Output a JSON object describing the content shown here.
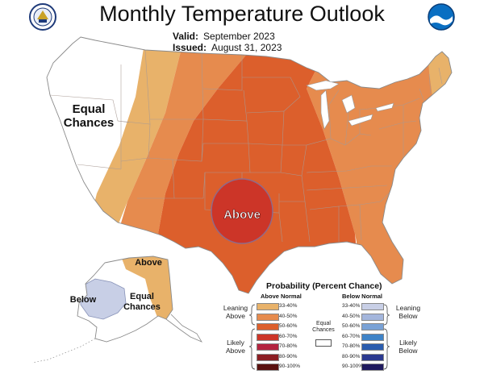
{
  "title": "Monthly Temperature Outlook",
  "valid_label": "Valid:",
  "valid_value": "September 2023",
  "issued_label": "Issued:",
  "issued_value": "August 31, 2023",
  "map_labels": {
    "equal_chances_conus_1": "Equal",
    "equal_chances_conus_2": "Chances",
    "above_center": "Above",
    "alaska_above": "Above",
    "alaska_below": "Below",
    "alaska_equal_1": "Equal",
    "alaska_equal_2": "Chances"
  },
  "legend": {
    "title": "Probability (Percent Chance)",
    "above_header": "Above Normal",
    "below_header": "Below Normal",
    "leaning_above": [
      "Leaning",
      "Above"
    ],
    "likely_above": [
      "Likely",
      "Above"
    ],
    "leaning_below": [
      "Leaning",
      "Below"
    ],
    "likely_below": [
      "Likely",
      "Below"
    ],
    "equal_chances": [
      "Equal",
      "Chances"
    ],
    "above_bins": [
      {
        "label": "33-40%",
        "color": "#e8b26a"
      },
      {
        "label": "40-50%",
        "color": "#e68b4e"
      },
      {
        "label": "50-60%",
        "color": "#dc5f2c"
      },
      {
        "label": "60-70%",
        "color": "#cc3528"
      },
      {
        "label": "70-80%",
        "color": "#b42440"
      },
      {
        "label": "80-90%",
        "color": "#8b1e23"
      },
      {
        "label": "90-100%",
        "color": "#5a1210"
      }
    ],
    "below_bins": [
      {
        "label": "33-40%",
        "color": "#c8cfe6"
      },
      {
        "label": "40-50%",
        "color": "#a4b6dc"
      },
      {
        "label": "50-60%",
        "color": "#7aa2d6"
      },
      {
        "label": "60-70%",
        "color": "#3f83c7"
      },
      {
        "label": "70-80%",
        "color": "#2a5cae"
      },
      {
        "label": "80-90%",
        "color": "#2b3990"
      },
      {
        "label": "90-100%",
        "color": "#1f1a5e"
      }
    ]
  },
  "logos": {
    "left": "noaa-commerce-seal-icon",
    "right": "noaa-logo-icon"
  }
}
